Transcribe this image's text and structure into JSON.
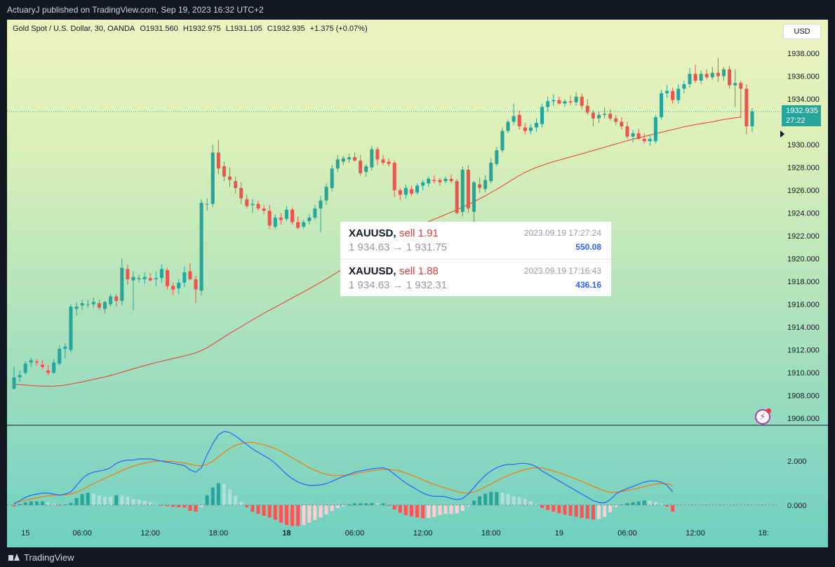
{
  "header": {
    "publish_text": "ActuaryJ published on TradingView.com, Sep 19, 2023 16:32 UTC+2"
  },
  "legend": {
    "symbol": "Gold Spot / U.S. Dollar, 30, OANDA",
    "open": "O1931.560",
    "high": "H1932.975",
    "low": "L1931.105",
    "close": "C1932.935",
    "change": "+1.375 (+0.07%)"
  },
  "currency_button": "USD",
  "last_price": {
    "value": "1932.935",
    "countdown": "27:22"
  },
  "trades": [
    {
      "symbol": "XAUUSD,",
      "side": "sell 1.91",
      "time": "2023.09.19 17:27:24",
      "prices": "1 934.63 → 1 931.75",
      "pnl": "550.08"
    },
    {
      "symbol": "XAUUSD,",
      "side": "sell 1.88",
      "time": "2023.09.19 17:16:43",
      "prices": "1 934.63 → 1 932.31",
      "pnl": "436.16"
    }
  ],
  "footer": {
    "brand": "TradingView"
  },
  "colors": {
    "up": "#26a69a",
    "down": "#ef5350",
    "ma": "#e53935",
    "macd": "#2962ff",
    "signal": "#f57c00"
  },
  "chart_data": {
    "type": "candlestick",
    "y_ticks": [
      "1938.000",
      "1936.000",
      "1934.000",
      "1932.000",
      "1930.000",
      "1928.000",
      "1926.000",
      "1924.000",
      "1922.000",
      "1920.000",
      "1918.000",
      "1916.000",
      "1914.000",
      "1912.000",
      "1910.000",
      "1908.000",
      "1906.000"
    ],
    "y_range": [
      1905.4,
      1939.6
    ],
    "x_ticks": [
      {
        "label": "15",
        "bold": false,
        "index": 2
      },
      {
        "label": "06:00",
        "bold": false,
        "index": 12
      },
      {
        "label": "12:00",
        "bold": false,
        "index": 24
      },
      {
        "label": "18:00",
        "bold": false,
        "index": 36
      },
      {
        "label": "18",
        "bold": true,
        "index": 48
      },
      {
        "label": "06:00",
        "bold": false,
        "index": 60
      },
      {
        "label": "12:00",
        "bold": false,
        "index": 72
      },
      {
        "label": "18:00",
        "bold": false,
        "index": 84
      },
      {
        "label": "19",
        "bold": false,
        "index": 96
      },
      {
        "label": "06:00",
        "bold": false,
        "index": 108
      },
      {
        "label": "12:00",
        "bold": false,
        "index": 120
      },
      {
        "label": "18:",
        "bold": false,
        "index": 132
      }
    ],
    "candles": [
      [
        1908.6,
        1910.5,
        1908.5,
        1909.6
      ],
      [
        1909.6,
        1910.2,
        1909.2,
        1909.8
      ],
      [
        1910.0,
        1911.0,
        1909.8,
        1910.8
      ],
      [
        1910.9,
        1911.3,
        1910.5,
        1911.1
      ],
      [
        1911.0,
        1911.2,
        1910.6,
        1910.9
      ],
      [
        1910.7,
        1911.1,
        1910.3,
        1910.5
      ],
      [
        1910.2,
        1910.7,
        1909.8,
        1910.0
      ],
      [
        1910.0,
        1911.2,
        1909.9,
        1910.9
      ],
      [
        1910.8,
        1912.4,
        1910.6,
        1912.1
      ],
      [
        1912.1,
        1912.6,
        1911.3,
        1912.3
      ],
      [
        1912.0,
        1916.0,
        1911.8,
        1915.8
      ],
      [
        1915.6,
        1916.2,
        1915.0,
        1915.8
      ],
      [
        1915.9,
        1916.4,
        1915.5,
        1916.1
      ],
      [
        1916.0,
        1916.4,
        1915.7,
        1916.0
      ],
      [
        1916.0,
        1916.6,
        1915.7,
        1916.2
      ],
      [
        1916.1,
        1916.4,
        1915.5,
        1915.7
      ],
      [
        1915.6,
        1916.3,
        1915.2,
        1916.2
      ],
      [
        1916.0,
        1916.9,
        1915.8,
        1916.7
      ],
      [
        1916.7,
        1916.9,
        1915.8,
        1916.3
      ],
      [
        1916.3,
        1920.0,
        1915.9,
        1919.2
      ],
      [
        1919.1,
        1919.5,
        1917.7,
        1918.2
      ],
      [
        1918.1,
        1918.9,
        1915.5,
        1918.4
      ],
      [
        1918.2,
        1918.6,
        1917.9,
        1918.3
      ],
      [
        1918.2,
        1918.8,
        1917.8,
        1918.4
      ],
      [
        1918.3,
        1918.7,
        1918.0,
        1918.1
      ],
      [
        1918.2,
        1918.9,
        1917.6,
        1918.3
      ],
      [
        1918.3,
        1919.5,
        1917.9,
        1919.1
      ],
      [
        1919.0,
        1919.2,
        1917.3,
        1917.6
      ],
      [
        1917.6,
        1917.9,
        1916.8,
        1917.3
      ],
      [
        1917.4,
        1918.2,
        1916.9,
        1917.9
      ],
      [
        1917.9,
        1919.3,
        1917.5,
        1918.8
      ],
      [
        1918.9,
        1919.6,
        1918.1,
        1918.2
      ],
      [
        1918.2,
        1918.5,
        1916.1,
        1917.3
      ],
      [
        1917.2,
        1925.2,
        1916.8,
        1924.9
      ],
      [
        1924.8,
        1925.3,
        1924.2,
        1924.8
      ],
      [
        1924.8,
        1930.0,
        1924.5,
        1929.3
      ],
      [
        1929.3,
        1930.4,
        1927.4,
        1927.9
      ],
      [
        1928.1,
        1928.5,
        1926.8,
        1927.2
      ],
      [
        1927.2,
        1928.0,
        1926.3,
        1926.9
      ],
      [
        1926.8,
        1927.2,
        1925.7,
        1926.2
      ],
      [
        1926.2,
        1926.7,
        1924.8,
        1925.3
      ],
      [
        1925.2,
        1925.6,
        1924.4,
        1924.6
      ],
      [
        1924.7,
        1925.2,
        1924.0,
        1924.8
      ],
      [
        1924.8,
        1925.1,
        1924.2,
        1924.4
      ],
      [
        1924.4,
        1924.7,
        1923.9,
        1924.2
      ],
      [
        1924.2,
        1924.7,
        1922.6,
        1922.9
      ],
      [
        1922.8,
        1923.9,
        1922.6,
        1923.6
      ],
      [
        1923.6,
        1924.0,
        1923.0,
        1923.4
      ],
      [
        1923.5,
        1924.6,
        1923.3,
        1924.3
      ],
      [
        1924.3,
        1924.5,
        1923.0,
        1923.2
      ],
      [
        1923.2,
        1923.7,
        1922.6,
        1922.7
      ],
      [
        1922.8,
        1923.4,
        1922.6,
        1923.2
      ],
      [
        1923.3,
        1923.9,
        1923.0,
        1923.6
      ],
      [
        1923.6,
        1924.7,
        1923.4,
        1924.4
      ],
      [
        1924.4,
        1925.5,
        1922.3,
        1925.1
      ],
      [
        1925.1,
        1926.6,
        1924.7,
        1926.3
      ],
      [
        1926.2,
        1928.2,
        1925.9,
        1927.9
      ],
      [
        1927.9,
        1929.1,
        1927.6,
        1928.7
      ],
      [
        1928.5,
        1929.0,
        1928.2,
        1928.8
      ],
      [
        1928.7,
        1929.2,
        1928.4,
        1928.9
      ],
      [
        1928.9,
        1929.3,
        1928.5,
        1928.6
      ],
      [
        1928.6,
        1929.1,
        1927.3,
        1927.5
      ],
      [
        1927.6,
        1928.3,
        1927.2,
        1928.1
      ],
      [
        1928.0,
        1929.9,
        1927.7,
        1929.6
      ],
      [
        1929.6,
        1929.8,
        1928.2,
        1928.7
      ],
      [
        1928.7,
        1929.1,
        1928.2,
        1928.4
      ],
      [
        1928.5,
        1928.8,
        1928.1,
        1928.3
      ],
      [
        1928.4,
        1928.6,
        1925.4,
        1926.0
      ],
      [
        1926.0,
        1926.2,
        1925.1,
        1925.6
      ],
      [
        1925.6,
        1926.5,
        1925.3,
        1926.2
      ],
      [
        1926.1,
        1926.4,
        1925.5,
        1925.7
      ],
      [
        1925.8,
        1926.6,
        1925.6,
        1926.4
      ],
      [
        1926.4,
        1926.9,
        1926.0,
        1926.7
      ],
      [
        1926.6,
        1927.2,
        1926.3,
        1927.0
      ],
      [
        1926.9,
        1927.3,
        1926.6,
        1926.8
      ],
      [
        1926.9,
        1927.1,
        1926.4,
        1926.7
      ],
      [
        1926.8,
        1927.2,
        1926.6,
        1927.0
      ],
      [
        1927.0,
        1927.4,
        1926.6,
        1926.8
      ],
      [
        1926.8,
        1927.0,
        1923.9,
        1924.0
      ],
      [
        1924.1,
        1928.1,
        1923.7,
        1927.8
      ],
      [
        1927.8,
        1928.2,
        1924.0,
        1924.4
      ],
      [
        1924.1,
        1926.8,
        1922.9,
        1926.7
      ],
      [
        1926.5,
        1927.1,
        1925.8,
        1926.2
      ],
      [
        1926.1,
        1927.3,
        1925.8,
        1926.9
      ],
      [
        1926.8,
        1928.8,
        1926.6,
        1928.4
      ],
      [
        1928.3,
        1929.8,
        1928.1,
        1929.5
      ],
      [
        1929.5,
        1931.5,
        1929.3,
        1931.2
      ],
      [
        1931.2,
        1932.2,
        1931.0,
        1932.0
      ],
      [
        1932.0,
        1933.6,
        1931.7,
        1932.5
      ],
      [
        1932.6,
        1933.0,
        1931.3,
        1931.6
      ],
      [
        1931.5,
        1931.9,
        1930.9,
        1931.2
      ],
      [
        1931.2,
        1931.8,
        1930.9,
        1931.5
      ],
      [
        1931.5,
        1932.3,
        1931.1,
        1931.9
      ],
      [
        1931.8,
        1933.6,
        1931.5,
        1933.3
      ],
      [
        1933.3,
        1934.2,
        1932.9,
        1933.8
      ],
      [
        1933.8,
        1934.4,
        1933.4,
        1933.9
      ],
      [
        1933.9,
        1934.2,
        1933.5,
        1933.6
      ],
      [
        1933.6,
        1934.0,
        1933.3,
        1933.8
      ],
      [
        1933.8,
        1934.3,
        1933.5,
        1933.7
      ],
      [
        1933.7,
        1934.6,
        1933.4,
        1934.2
      ],
      [
        1934.2,
        1934.5,
        1933.1,
        1933.4
      ],
      [
        1933.4,
        1934.0,
        1932.6,
        1932.8
      ],
      [
        1932.8,
        1933.0,
        1931.6,
        1932.3
      ],
      [
        1932.3,
        1932.9,
        1931.9,
        1932.6
      ],
      [
        1932.6,
        1933.3,
        1932.3,
        1932.7
      ],
      [
        1932.7,
        1933.1,
        1932.1,
        1932.3
      ],
      [
        1932.3,
        1932.6,
        1931.7,
        1932.0
      ],
      [
        1932.0,
        1932.4,
        1931.3,
        1931.6
      ],
      [
        1931.6,
        1932.0,
        1930.5,
        1930.7
      ],
      [
        1930.7,
        1931.3,
        1930.2,
        1931.0
      ],
      [
        1931.0,
        1931.4,
        1930.4,
        1930.5
      ],
      [
        1930.5,
        1931.0,
        1930.1,
        1930.3
      ],
      [
        1930.3,
        1930.8,
        1929.9,
        1930.5
      ],
      [
        1930.3,
        1932.6,
        1930.1,
        1932.4
      ],
      [
        1932.4,
        1934.8,
        1932.2,
        1934.5
      ],
      [
        1934.5,
        1935.2,
        1934.1,
        1934.7
      ],
      [
        1934.7,
        1935.0,
        1933.6,
        1933.9
      ],
      [
        1933.9,
        1935.3,
        1933.6,
        1934.9
      ],
      [
        1934.9,
        1935.6,
        1934.5,
        1935.3
      ],
      [
        1935.3,
        1936.7,
        1935.0,
        1936.2
      ],
      [
        1936.2,
        1937.0,
        1935.4,
        1935.6
      ],
      [
        1935.6,
        1936.5,
        1935.3,
        1936.2
      ],
      [
        1936.2,
        1936.6,
        1935.7,
        1935.9
      ],
      [
        1935.9,
        1936.8,
        1935.7,
        1936.3
      ],
      [
        1936.3,
        1937.6,
        1935.5,
        1936.0
      ],
      [
        1936.0,
        1936.8,
        1935.6,
        1936.6
      ],
      [
        1936.6,
        1936.9,
        1934.9,
        1935.2
      ],
      [
        1935.2,
        1936.6,
        1933.3,
        1935.4
      ],
      [
        1935.4,
        1935.6,
        1932.3,
        1934.9
      ],
      [
        1934.9,
        1935.3,
        1930.9,
        1931.6
      ],
      [
        1931.6,
        1933.2,
        1931.1,
        1932.9
      ]
    ],
    "ma": [
      1909.0,
      1908.96,
      1908.92,
      1908.88,
      1908.85,
      1908.83,
      1908.82,
      1908.83,
      1908.86,
      1908.92,
      1909.0,
      1909.1,
      1909.2,
      1909.31,
      1909.42,
      1909.53,
      1909.64,
      1909.77,
      1909.9,
      1910.05,
      1910.2,
      1910.35,
      1910.5,
      1910.63,
      1910.76,
      1910.89,
      1911.01,
      1911.13,
      1911.25,
      1911.36,
      1911.48,
      1911.6,
      1911.75,
      1911.95,
      1912.2,
      1912.5,
      1912.82,
      1913.14,
      1913.45,
      1913.75,
      1914.05,
      1914.35,
      1914.64,
      1914.93,
      1915.21,
      1915.48,
      1915.75,
      1916.02,
      1916.29,
      1916.56,
      1916.83,
      1917.1,
      1917.37,
      1917.65,
      1917.93,
      1918.22,
      1918.52,
      1918.83,
      1919.14,
      1919.46,
      1919.78,
      1920.09,
      1920.4,
      1920.71,
      1921.02,
      1921.32,
      1921.61,
      1921.88,
      1922.13,
      1922.37,
      1922.6,
      1922.82,
      1923.04,
      1923.25,
      1923.46,
      1923.66,
      1923.87,
      1924.08,
      1924.29,
      1924.52,
      1924.76,
      1925.0,
      1925.25,
      1925.51,
      1925.79,
      1926.08,
      1926.38,
      1926.69,
      1927.0,
      1927.3,
      1927.56,
      1927.79,
      1928.0,
      1928.18,
      1928.35,
      1928.5,
      1928.64,
      1928.78,
      1928.92,
      1929.06,
      1929.2,
      1929.34,
      1929.48,
      1929.62,
      1929.77,
      1929.92,
      1930.06,
      1930.2,
      1930.34,
      1930.47,
      1930.6,
      1930.72,
      1930.84,
      1930.96,
      1931.08,
      1931.2,
      1931.32,
      1931.44,
      1931.56,
      1931.66,
      1931.76,
      1931.84,
      1931.92,
      1932.0,
      1932.1,
      1932.2,
      1932.28,
      1932.35,
      1932.42
    ],
    "macd_axis": {
      "ticks": [
        "2.000",
        "0.000"
      ],
      "range": [
        -0.9,
        3.6
      ]
    },
    "macd": [
      0.05,
      0.2,
      0.35,
      0.45,
      0.5,
      0.55,
      0.55,
      0.5,
      0.45,
      0.5,
      0.6,
      0.9,
      1.2,
      1.4,
      1.5,
      1.55,
      1.6,
      1.7,
      1.9,
      2.0,
      2.05,
      2.05,
      2.1,
      2.1,
      2.1,
      2.05,
      2.0,
      1.95,
      1.9,
      1.85,
      1.8,
      1.6,
      1.5,
      1.7,
      2.3,
      2.8,
      3.2,
      3.35,
      3.3,
      3.15,
      2.95,
      2.75,
      2.55,
      2.4,
      2.25,
      2.1,
      1.9,
      1.65,
      1.4,
      1.2,
      1.05,
      0.95,
      0.9,
      0.9,
      0.92,
      0.98,
      1.08,
      1.2,
      1.3,
      1.4,
      1.5,
      1.55,
      1.6,
      1.65,
      1.68,
      1.7,
      1.6,
      1.4,
      1.2,
      1.0,
      0.85,
      0.7,
      0.55,
      0.45,
      0.4,
      0.4,
      0.38,
      0.3,
      0.25,
      0.3,
      0.5,
      0.8,
      1.1,
      1.35,
      1.55,
      1.7,
      1.8,
      1.85,
      1.85,
      1.9,
      1.9,
      1.85,
      1.75,
      1.55,
      1.4,
      1.25,
      1.1,
      0.95,
      0.8,
      0.65,
      0.5,
      0.35,
      0.2,
      0.12,
      0.1,
      0.25,
      0.5,
      0.65,
      0.75,
      0.85,
      0.95,
      1.05,
      1.1,
      1.1,
      1.05,
      0.9,
      0.6
    ],
    "signal": [
      0.1,
      0.15,
      0.22,
      0.28,
      0.33,
      0.38,
      0.42,
      0.45,
      0.46,
      0.47,
      0.5,
      0.58,
      0.7,
      0.84,
      0.98,
      1.1,
      1.22,
      1.33,
      1.45,
      1.57,
      1.68,
      1.77,
      1.85,
      1.91,
      1.96,
      2.0,
      2.01,
      2.0,
      1.98,
      1.95,
      1.91,
      1.86,
      1.8,
      1.78,
      1.85,
      2.0,
      2.2,
      2.4,
      2.58,
      2.72,
      2.8,
      2.85,
      2.85,
      2.8,
      2.74,
      2.66,
      2.57,
      2.45,
      2.3,
      2.15,
      2.0,
      1.85,
      1.7,
      1.58,
      1.48,
      1.4,
      1.35,
      1.34,
      1.35,
      1.38,
      1.42,
      1.47,
      1.52,
      1.56,
      1.6,
      1.62,
      1.63,
      1.6,
      1.55,
      1.46,
      1.36,
      1.26,
      1.15,
      1.04,
      0.94,
      0.85,
      0.78,
      0.7,
      0.62,
      0.56,
      0.55,
      0.6,
      0.7,
      0.83,
      0.96,
      1.1,
      1.23,
      1.35,
      1.45,
      1.54,
      1.62,
      1.68,
      1.7,
      1.68,
      1.62,
      1.55,
      1.47,
      1.38,
      1.28,
      1.18,
      1.08,
      0.97,
      0.86,
      0.75,
      0.64,
      0.58,
      0.58,
      0.62,
      0.66,
      0.72,
      0.78,
      0.84,
      0.9,
      0.95,
      0.98,
      0.97,
      0.9
    ]
  }
}
